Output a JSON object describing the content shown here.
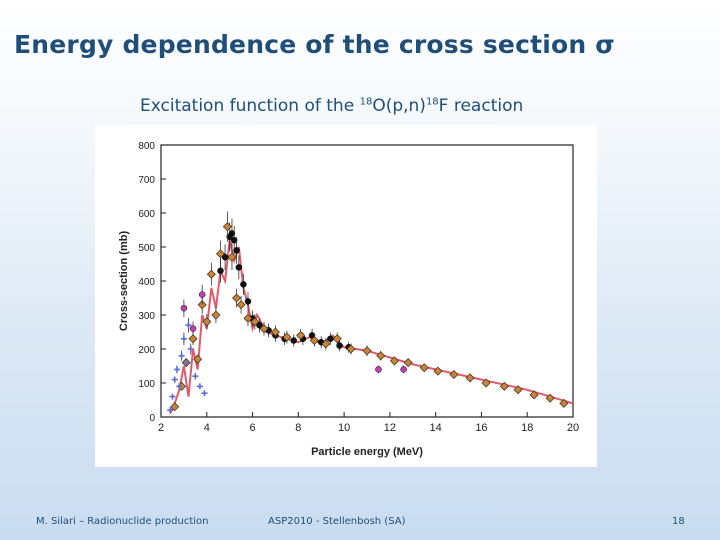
{
  "slide": {
    "title": "Energy dependence of the cross section σ",
    "subtitle_pre": "Excitation function of the ",
    "subtitle_sup1": "18",
    "subtitle_mid": "O(p,n)",
    "subtitle_sup2": "18",
    "subtitle_post": "F reaction"
  },
  "footer": {
    "left": "M. Silari – Radionuclide production",
    "center": "ASP2010 - Stellenbosh (SA)",
    "page_number": "18"
  },
  "colors": {
    "title": "#1f4e79",
    "fit_curve": "#e05a6a",
    "data_black": "#111111",
    "data_orange": "#c8843a",
    "data_blue": "#5a6fd6",
    "data_magenta": "#c040b0"
  },
  "chart_data": {
    "type": "scatter",
    "title": "",
    "xlabel": "Particle energy (MeV)",
    "ylabel": "Cross-section (mb)",
    "xlim": [
      2,
      20
    ],
    "ylim": [
      0,
      800
    ],
    "xticks": [
      2,
      4,
      6,
      8,
      10,
      12,
      14,
      16,
      18,
      20
    ],
    "yticks": [
      0,
      100,
      200,
      300,
      400,
      500,
      600,
      700,
      800
    ],
    "series": [
      {
        "name": "evaluated fit",
        "kind": "line",
        "x": [
          2.4,
          2.6,
          2.8,
          3.0,
          3.2,
          3.4,
          3.6,
          3.8,
          4.0,
          4.2,
          4.4,
          4.6,
          4.8,
          5.0,
          5.2,
          5.4,
          5.6,
          5.8,
          6.0,
          6.2,
          6.6,
          7.0,
          7.5,
          8.0,
          8.5,
          9.0,
          9.5,
          10.0,
          10.5,
          11.0,
          12.0,
          13.0,
          14.0,
          15.0,
          16.0,
          17.0,
          18.0,
          19.0,
          20.0
        ],
        "y": [
          10,
          40,
          80,
          150,
          60,
          200,
          140,
          300,
          260,
          380,
          320,
          430,
          400,
          520,
          460,
          500,
          380,
          330,
          260,
          300,
          250,
          240,
          230,
          220,
          235,
          215,
          240,
          205,
          200,
          195,
          175,
          155,
          140,
          125,
          110,
          95,
          80,
          60,
          40
        ]
      },
      {
        "name": "measurements (black)",
        "kind": "points",
        "x": [
          4.6,
          4.8,
          5.0,
          5.1,
          5.2,
          5.3,
          5.4,
          5.6,
          5.8,
          6.0,
          6.3,
          6.7,
          7.0,
          7.4,
          7.8,
          8.2,
          8.6,
          9.0,
          9.4,
          9.8,
          10.2
        ],
        "y": [
          430,
          470,
          530,
          540,
          520,
          490,
          440,
          390,
          340,
          290,
          270,
          255,
          240,
          230,
          225,
          230,
          240,
          220,
          230,
          210,
          205
        ]
      },
      {
        "name": "measurements (orange)",
        "kind": "points",
        "x": [
          2.6,
          2.9,
          3.1,
          3.4,
          3.6,
          3.8,
          4.0,
          4.2,
          4.4,
          4.6,
          4.9,
          5.1,
          5.3,
          5.5,
          5.8,
          6.1,
          6.5,
          7.0,
          7.5,
          8.1,
          8.7,
          9.2,
          9.7,
          10.3,
          11.0,
          11.6,
          12.2,
          12.8,
          13.5,
          14.1,
          14.8,
          15.5,
          16.2,
          17.0,
          17.6,
          18.3,
          19.0,
          19.6
        ],
        "y": [
          30,
          90,
          160,
          230,
          170,
          330,
          280,
          420,
          300,
          480,
          560,
          470,
          350,
          330,
          290,
          280,
          260,
          250,
          235,
          240,
          225,
          215,
          230,
          200,
          195,
          180,
          165,
          160,
          145,
          135,
          125,
          115,
          100,
          90,
          80,
          65,
          55,
          40
        ]
      },
      {
        "name": "measurements (blue)",
        "kind": "points",
        "x": [
          2.4,
          2.5,
          2.6,
          2.7,
          2.8,
          2.9,
          3.0,
          3.1,
          3.2,
          3.3,
          3.5,
          3.7,
          3.9
        ],
        "y": [
          20,
          60,
          110,
          140,
          90,
          180,
          230,
          160,
          270,
          200,
          120,
          90,
          70
        ]
      },
      {
        "name": "measurements (magenta)",
        "kind": "points",
        "x": [
          3.0,
          3.4,
          3.8,
          11.5,
          12.6
        ],
        "y": [
          320,
          260,
          360,
          140,
          140
        ]
      }
    ]
  }
}
